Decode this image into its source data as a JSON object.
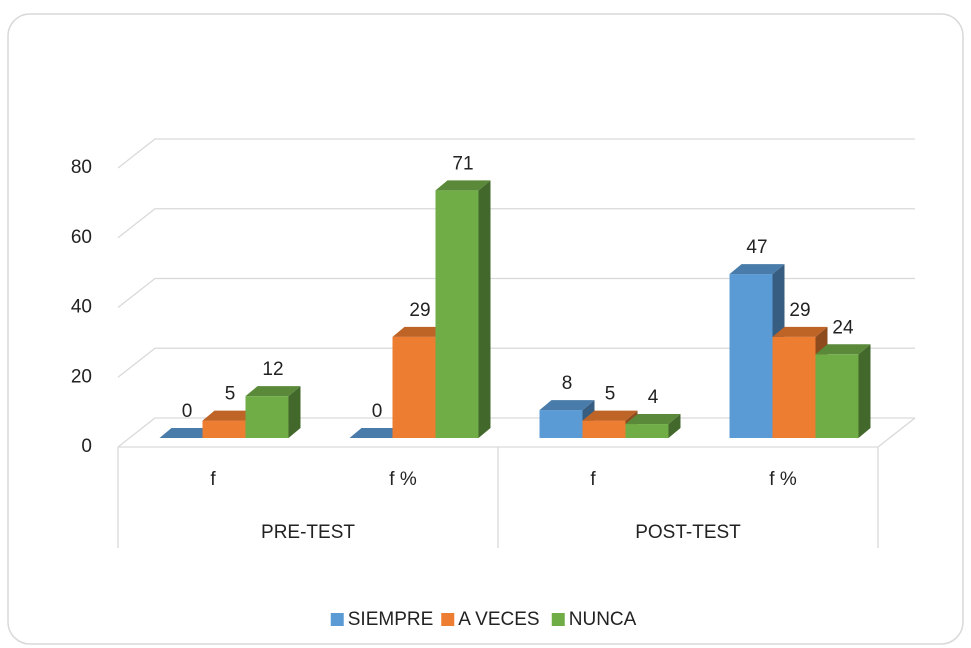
{
  "chart_data": {
    "type": "bar3d",
    "categories": [
      "f",
      "f %",
      "f",
      "f %"
    ],
    "groups": [
      {
        "name": "PRE-TEST",
        "span": 2
      },
      {
        "name": "POST-TEST",
        "span": 2
      }
    ],
    "series": [
      {
        "name": "SIEMPRE",
        "color": "#5b9bd5",
        "values": [
          0,
          0,
          8,
          47
        ]
      },
      {
        "name": "A VECES",
        "color": "#ed7d31",
        "values": [
          5,
          29,
          5,
          29
        ]
      },
      {
        "name": "NUNCA",
        "color": "#70ad47",
        "values": [
          12,
          71,
          4,
          24
        ]
      }
    ],
    "ylim": [
      0,
      80
    ],
    "yticks": [
      0,
      20,
      40,
      60,
      80
    ],
    "grid": true,
    "legend": "bottom"
  }
}
